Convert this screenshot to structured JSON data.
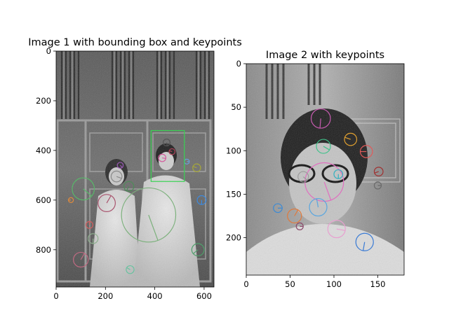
{
  "chart_data": [
    {
      "type": "image",
      "title": "Image 1 with bounding box and keypoints",
      "xlim": [
        0,
        640
      ],
      "ylim": [
        950,
        0
      ],
      "xticks": [
        0,
        200,
        400,
        600
      ],
      "yticks": [
        0,
        200,
        400,
        600,
        800
      ],
      "bounding_box": {
        "x": [
          385,
          520
        ],
        "y": [
          320,
          525
        ],
        "color": "#39d353"
      },
      "keypoints": [
        {
          "x": 110,
          "y": 555,
          "r": 45,
          "angle": 40,
          "color": "#59b86a"
        },
        {
          "x": 375,
          "y": 660,
          "r": 110,
          "angle": 70,
          "color": "#7cb17c"
        },
        {
          "x": 205,
          "y": 612,
          "r": 35,
          "angle": -60,
          "color": "#a9546e"
        },
        {
          "x": 245,
          "y": 505,
          "r": 22,
          "angle": 20,
          "color": "#8a8a8a"
        },
        {
          "x": 295,
          "y": 545,
          "r": 20,
          "angle": 120,
          "color": "#4f8b5a"
        },
        {
          "x": 448,
          "y": 368,
          "r": 14,
          "angle": 80,
          "color": "#555555"
        },
        {
          "x": 470,
          "y": 405,
          "r": 12,
          "angle": 200,
          "color": "#b0445a"
        },
        {
          "x": 430,
          "y": 430,
          "r": 15,
          "angle": 10,
          "color": "#d45a9c"
        },
        {
          "x": 575,
          "y": 800,
          "r": 25,
          "angle": 140,
          "color": "#4fa06b"
        },
        {
          "x": 150,
          "y": 755,
          "r": 20,
          "angle": 90,
          "color": "#8fb08f"
        },
        {
          "x": 100,
          "y": 840,
          "r": 30,
          "angle": 300,
          "color": "#c06a82"
        },
        {
          "x": 570,
          "y": 470,
          "r": 16,
          "angle": 200,
          "color": "#a5a53a"
        },
        {
          "x": 530,
          "y": 445,
          "r": 10,
          "angle": 0,
          "color": "#6aa0d6"
        },
        {
          "x": 135,
          "y": 700,
          "r": 14,
          "angle": 270,
          "color": "#d06060"
        },
        {
          "x": 260,
          "y": 460,
          "r": 12,
          "angle": 45,
          "color": "#9b59b6"
        },
        {
          "x": 60,
          "y": 600,
          "r": 10,
          "angle": 180,
          "color": "#e08a3c"
        },
        {
          "x": 590,
          "y": 600,
          "r": 18,
          "angle": 90,
          "color": "#3c8ae0"
        },
        {
          "x": 300,
          "y": 880,
          "r": 16,
          "angle": 210,
          "color": "#6ac2a0"
        }
      ]
    },
    {
      "type": "image",
      "title": "Image 2 with keypoints",
      "xlim": [
        0,
        180
      ],
      "ylim": [
        243,
        0
      ],
      "xticks": [
        0,
        50,
        100,
        150
      ],
      "yticks": [
        0,
        50,
        100,
        150,
        200
      ],
      "keypoints": [
        {
          "x": 85,
          "y": 63,
          "r": 11,
          "angle": 95,
          "color": "#c75bb0"
        },
        {
          "x": 88,
          "y": 95,
          "r": 8,
          "angle": 30,
          "color": "#3fc28a"
        },
        {
          "x": 89,
          "y": 136,
          "r": 22,
          "angle": 70,
          "color": "#e070c0"
        },
        {
          "x": 82,
          "y": 165,
          "r": 10,
          "angle": 260,
          "color": "#59a6e0"
        },
        {
          "x": 103,
          "y": 190,
          "r": 10,
          "angle": 10,
          "color": "#e8a0d0"
        },
        {
          "x": 135,
          "y": 205,
          "r": 10,
          "angle": 100,
          "color": "#3a7bd5"
        },
        {
          "x": 55,
          "y": 175,
          "r": 8,
          "angle": 300,
          "color": "#e07a3c"
        },
        {
          "x": 137,
          "y": 101,
          "r": 7,
          "angle": 180,
          "color": "#e05a5a"
        },
        {
          "x": 119,
          "y": 87,
          "r": 7,
          "angle": 200,
          "color": "#e0a030"
        },
        {
          "x": 65,
          "y": 130,
          "r": 6,
          "angle": 40,
          "color": "#9a9a9a"
        },
        {
          "x": 105,
          "y": 127,
          "r": 5,
          "angle": 90,
          "color": "#30b0c0"
        },
        {
          "x": 151,
          "y": 124,
          "r": 5,
          "angle": 160,
          "color": "#a03030"
        },
        {
          "x": 36,
          "y": 166,
          "r": 5,
          "angle": 0,
          "color": "#3a8ad5"
        },
        {
          "x": 61,
          "y": 187,
          "r": 4,
          "angle": 0,
          "color": "#8a4a6a"
        },
        {
          "x": 150,
          "y": 140,
          "r": 4,
          "angle": 0,
          "color": "#6a6a6a"
        }
      ]
    }
  ]
}
